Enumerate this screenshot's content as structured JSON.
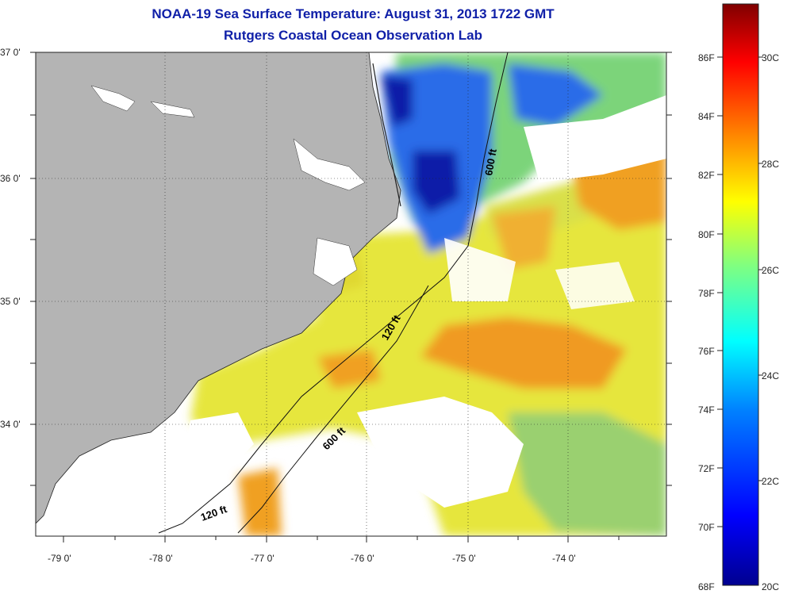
{
  "header": {
    "title": "NOAA-19 Sea Surface Temperature:  August 31, 2013 1722 GMT",
    "subtitle": "Rutgers Coastal Ocean Observation Lab"
  },
  "axes": {
    "lat_labels": [
      "37 0'",
      "36 0'",
      "35 0'",
      "34 0'"
    ],
    "lon_labels": [
      "-79 0'",
      "-78 0'",
      "-77 0'",
      "-76 0'",
      "-75 0'",
      "-74 0'"
    ]
  },
  "isobaths": {
    "label_600_north": "600 ft",
    "label_120_mid": "120 ft",
    "label_600_south": "600 ft",
    "label_120_south": "120 ft"
  },
  "colorbar": {
    "f_labels": [
      "86F",
      "84F",
      "82F",
      "80F",
      "78F",
      "76F",
      "74F",
      "72F",
      "70F",
      "68F"
    ],
    "c_labels": [
      "30C",
      "28C",
      "26C",
      "24C",
      "22C",
      "20C"
    ],
    "colors": [
      "#00008f",
      "#0000ff",
      "#0080ff",
      "#00ffff",
      "#80ff80",
      "#ffff00",
      "#ff8000",
      "#ff0000",
      "#800000"
    ]
  },
  "colors": {
    "land": "#b4b4b4",
    "cold": "#0a1aa8",
    "cool": "#2a6cf0",
    "mid": "#7ed08a",
    "warm": "#e8e040",
    "hot": "#f0a020"
  }
}
